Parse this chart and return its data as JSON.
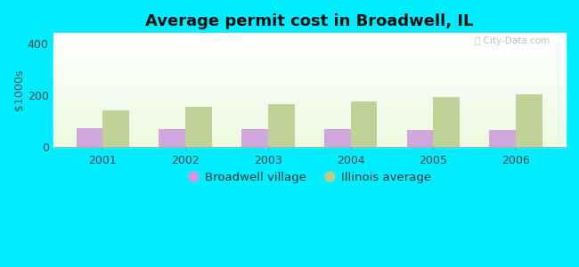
{
  "title": "Average permit cost in Broadwell, IL",
  "years": [
    2001,
    2002,
    2003,
    2004,
    2005,
    2006
  ],
  "broadwell_values": [
    72,
    68,
    68,
    68,
    65,
    65
  ],
  "illinois_values": [
    140,
    155,
    165,
    175,
    193,
    202
  ],
  "broadwell_color": "#cc99dd",
  "illinois_color": "#b8cc88",
  "ylabel": "$1000s",
  "ylim": [
    0,
    440
  ],
  "yticks": [
    0,
    200,
    400
  ],
  "background_outer": "#00eeff",
  "bar_width": 0.32,
  "watermark": "City-Data.com",
  "legend_broadwell": "Broadwell village",
  "legend_illinois": "Illinois average"
}
